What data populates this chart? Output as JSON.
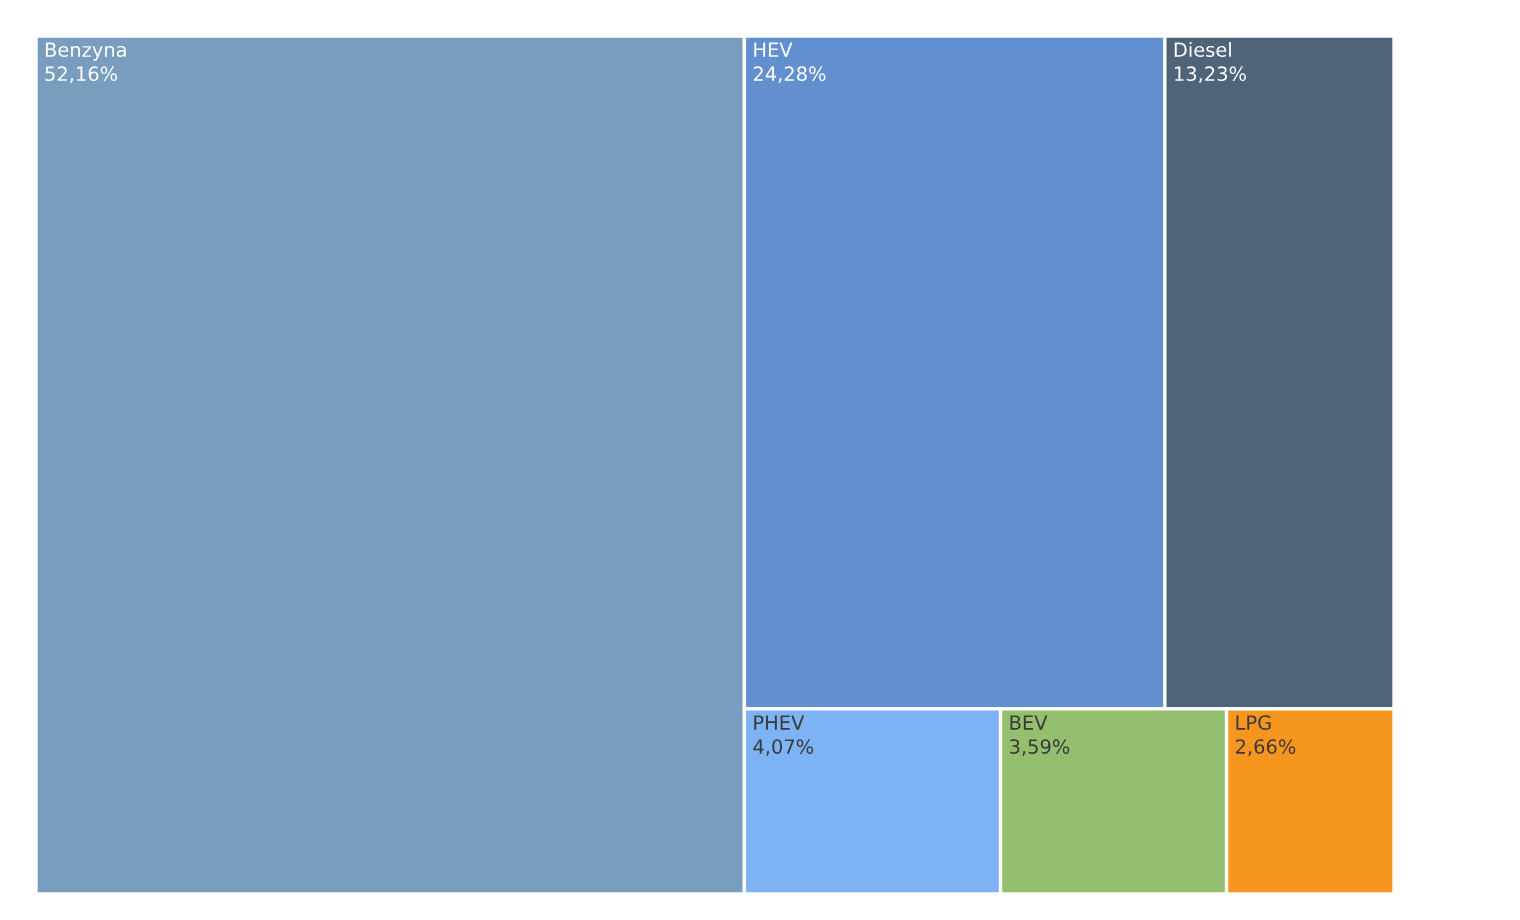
{
  "chart_data": {
    "type": "other",
    "categories": [
      "Benzyna",
      "HEV",
      "Diesel",
      "PHEV",
      "BEV",
      "LPG"
    ],
    "values": [
      52.16,
      24.28,
      13.23,
      4.07,
      3.59,
      2.66
    ],
    "value_labels": [
      "52,16%",
      "24,28%",
      "13,23%",
      "4,07%",
      "3,59%",
      "2,66%"
    ],
    "colors": [
      "#789dbf",
      "#628fcf",
      "#4f6479",
      "#7db3f5",
      "#93bf6f",
      "#f7961e"
    ]
  }
}
